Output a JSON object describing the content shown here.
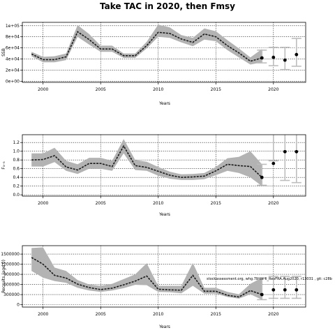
{
  "figure_title": "Take TAC in 2020, then Fmsy",
  "chart_data": [
    {
      "type": "line",
      "id": "ssb",
      "ylabel": "SSB",
      "xlabel": "Years",
      "xlim": [
        1998.2,
        2022.8
      ],
      "ylim": [
        -2000,
        106000
      ],
      "xticks": [
        2000,
        2005,
        2010,
        2015,
        2020
      ],
      "yticks": [
        0,
        20000,
        40000,
        60000,
        80000,
        100000
      ],
      "ytick_labels": [
        "0e+00",
        "2e+04",
        "4e+04",
        "6e+04",
        "8e+04",
        "1e+05"
      ],
      "grid": "dotted",
      "history": {
        "x": [
          1999,
          2000,
          2001,
          2002,
          2003,
          2004,
          2005,
          2006,
          2007,
          2008,
          2009,
          2010,
          2011,
          2012,
          2013,
          2014,
          2015,
          2016,
          2017,
          2018,
          2019
        ],
        "median": [
          49000,
          39000,
          39000,
          44000,
          89000,
          75000,
          58000,
          58000,
          46000,
          46000,
          64000,
          88000,
          86000,
          76000,
          70000,
          85000,
          80000,
          64000,
          51000,
          36000,
          42000
        ],
        "lower": [
          45000,
          34000,
          34000,
          38000,
          80000,
          66000,
          53000,
          53000,
          42000,
          42000,
          59000,
          80000,
          78000,
          70000,
          63000,
          75000,
          72000,
          56000,
          43000,
          30000,
          34000
        ]
      },
      "history_upper": [
        53000,
        44000,
        45000,
        50000,
        101000,
        85000,
        64000,
        64000,
        50000,
        50000,
        71000,
        102000,
        97000,
        83000,
        78000,
        95000,
        90000,
        74000,
        59000,
        43000,
        58000
      ],
      "projection": {
        "x": [
          2019,
          2020,
          2021,
          2022
        ],
        "median": [
          42000,
          43000,
          38000,
          48000
        ],
        "lower": [
          33000,
          28000,
          21000,
          27000
        ],
        "upper": [
          56000,
          61000,
          61000,
          77000
        ]
      }
    },
    {
      "type": "line",
      "id": "fishing-mortality",
      "ylabel": "F₃₋₅",
      "xlabel": "Years",
      "xlim": [
        1998.2,
        2022.8
      ],
      "ylim": [
        -0.03,
        1.38
      ],
      "xticks": [
        2000,
        2005,
        2010,
        2015,
        2020
      ],
      "yticks": [
        0.0,
        0.2,
        0.4,
        0.6,
        0.8,
        1.0,
        1.2
      ],
      "ytick_labels": [
        "0.0",
        "0.2",
        "0.4",
        "0.6",
        "0.8",
        "1.0",
        "1.2"
      ],
      "grid": "dotted",
      "history": {
        "x": [
          1999,
          2000,
          2001,
          2002,
          2003,
          2004,
          2005,
          2006,
          2007,
          2008,
          2009,
          2010,
          2011,
          2012,
          2013,
          2014,
          2015,
          2016,
          2017,
          2018,
          2019
        ],
        "median": [
          0.8,
          0.81,
          0.9,
          0.64,
          0.57,
          0.72,
          0.72,
          0.65,
          1.12,
          0.67,
          0.63,
          0.54,
          0.45,
          0.4,
          0.41,
          0.43,
          0.55,
          0.7,
          0.67,
          0.65,
          0.4
        ],
        "lower": [
          0.65,
          0.65,
          0.75,
          0.55,
          0.48,
          0.6,
          0.6,
          0.55,
          0.95,
          0.57,
          0.55,
          0.44,
          0.37,
          0.34,
          0.34,
          0.36,
          0.45,
          0.55,
          0.5,
          0.4,
          0.2
        ],
        "upper": [
          0.95,
          0.95,
          1.08,
          0.78,
          0.7,
          0.85,
          0.85,
          0.78,
          1.28,
          0.8,
          0.76,
          0.64,
          0.53,
          0.47,
          0.48,
          0.5,
          0.64,
          0.84,
          0.87,
          1.0,
          0.7
        ]
      },
      "projection": {
        "x": [
          2019,
          2020,
          2021,
          2022
        ],
        "median": [
          0.4,
          0.72,
          0.99,
          0.99
        ],
        "lower": [
          0.22,
          0.78,
          0.33,
          0.28
        ],
        "upper": [
          0.7,
          1.4,
          1.4,
          1.4
        ]
      }
    },
    {
      "type": "line",
      "id": "recruitment",
      "ylabel": "Recruits (age 0)",
      "xlabel": "Years",
      "xlim": [
        1998.2,
        2022.8
      ],
      "ylim": [
        -70000,
        1750000
      ],
      "xticks": [
        2000,
        2005,
        2010,
        2015,
        2020
      ],
      "yticks": [
        0,
        300000,
        600000,
        900000,
        1200000,
        1500000
      ],
      "ytick_labels": [
        "0",
        "300000",
        "600000",
        "900000",
        "1200000",
        "1500000"
      ],
      "grid": "dotted",
      "history": {
        "x": [
          1999,
          2000,
          2001,
          2002,
          2003,
          2004,
          2005,
          2006,
          2007,
          2008,
          2009,
          2010,
          2011,
          2012,
          2013,
          2014,
          2015,
          2016,
          2017,
          2018,
          2019
        ],
        "median": [
          1400000,
          1200000,
          870000,
          790000,
          610000,
          510000,
          450000,
          490000,
          590000,
          700000,
          850000,
          460000,
          440000,
          430000,
          870000,
          400000,
          400000,
          280000,
          230000,
          420000,
          300000
        ],
        "lower": [
          1000000,
          800000,
          700000,
          650000,
          500000,
          420000,
          380000,
          420000,
          490000,
          590000,
          580000,
          380000,
          370000,
          340000,
          560000,
          330000,
          330000,
          230000,
          180000,
          310000,
          150000
        ],
        "upper": [
          1680000,
          1700000,
          1100000,
          1000000,
          730000,
          600000,
          560000,
          620000,
          760000,
          900000,
          1230000,
          560000,
          560000,
          560000,
          1240000,
          500000,
          500000,
          380000,
          310000,
          620000,
          800000
        ]
      },
      "projection": {
        "x": [
          2019,
          2020,
          2021,
          2022
        ],
        "median": [
          300000,
          440000,
          440000,
          440000
        ],
        "lower": [
          150000,
          190000,
          190000,
          190000
        ],
        "upper": [
          800000,
          840000,
          840000,
          840000
        ]
      },
      "annotation": "stockassessment.org, whg.7b-ce-k_RevFRA.Aug2020, r13031 , git: c28b"
    }
  ]
}
